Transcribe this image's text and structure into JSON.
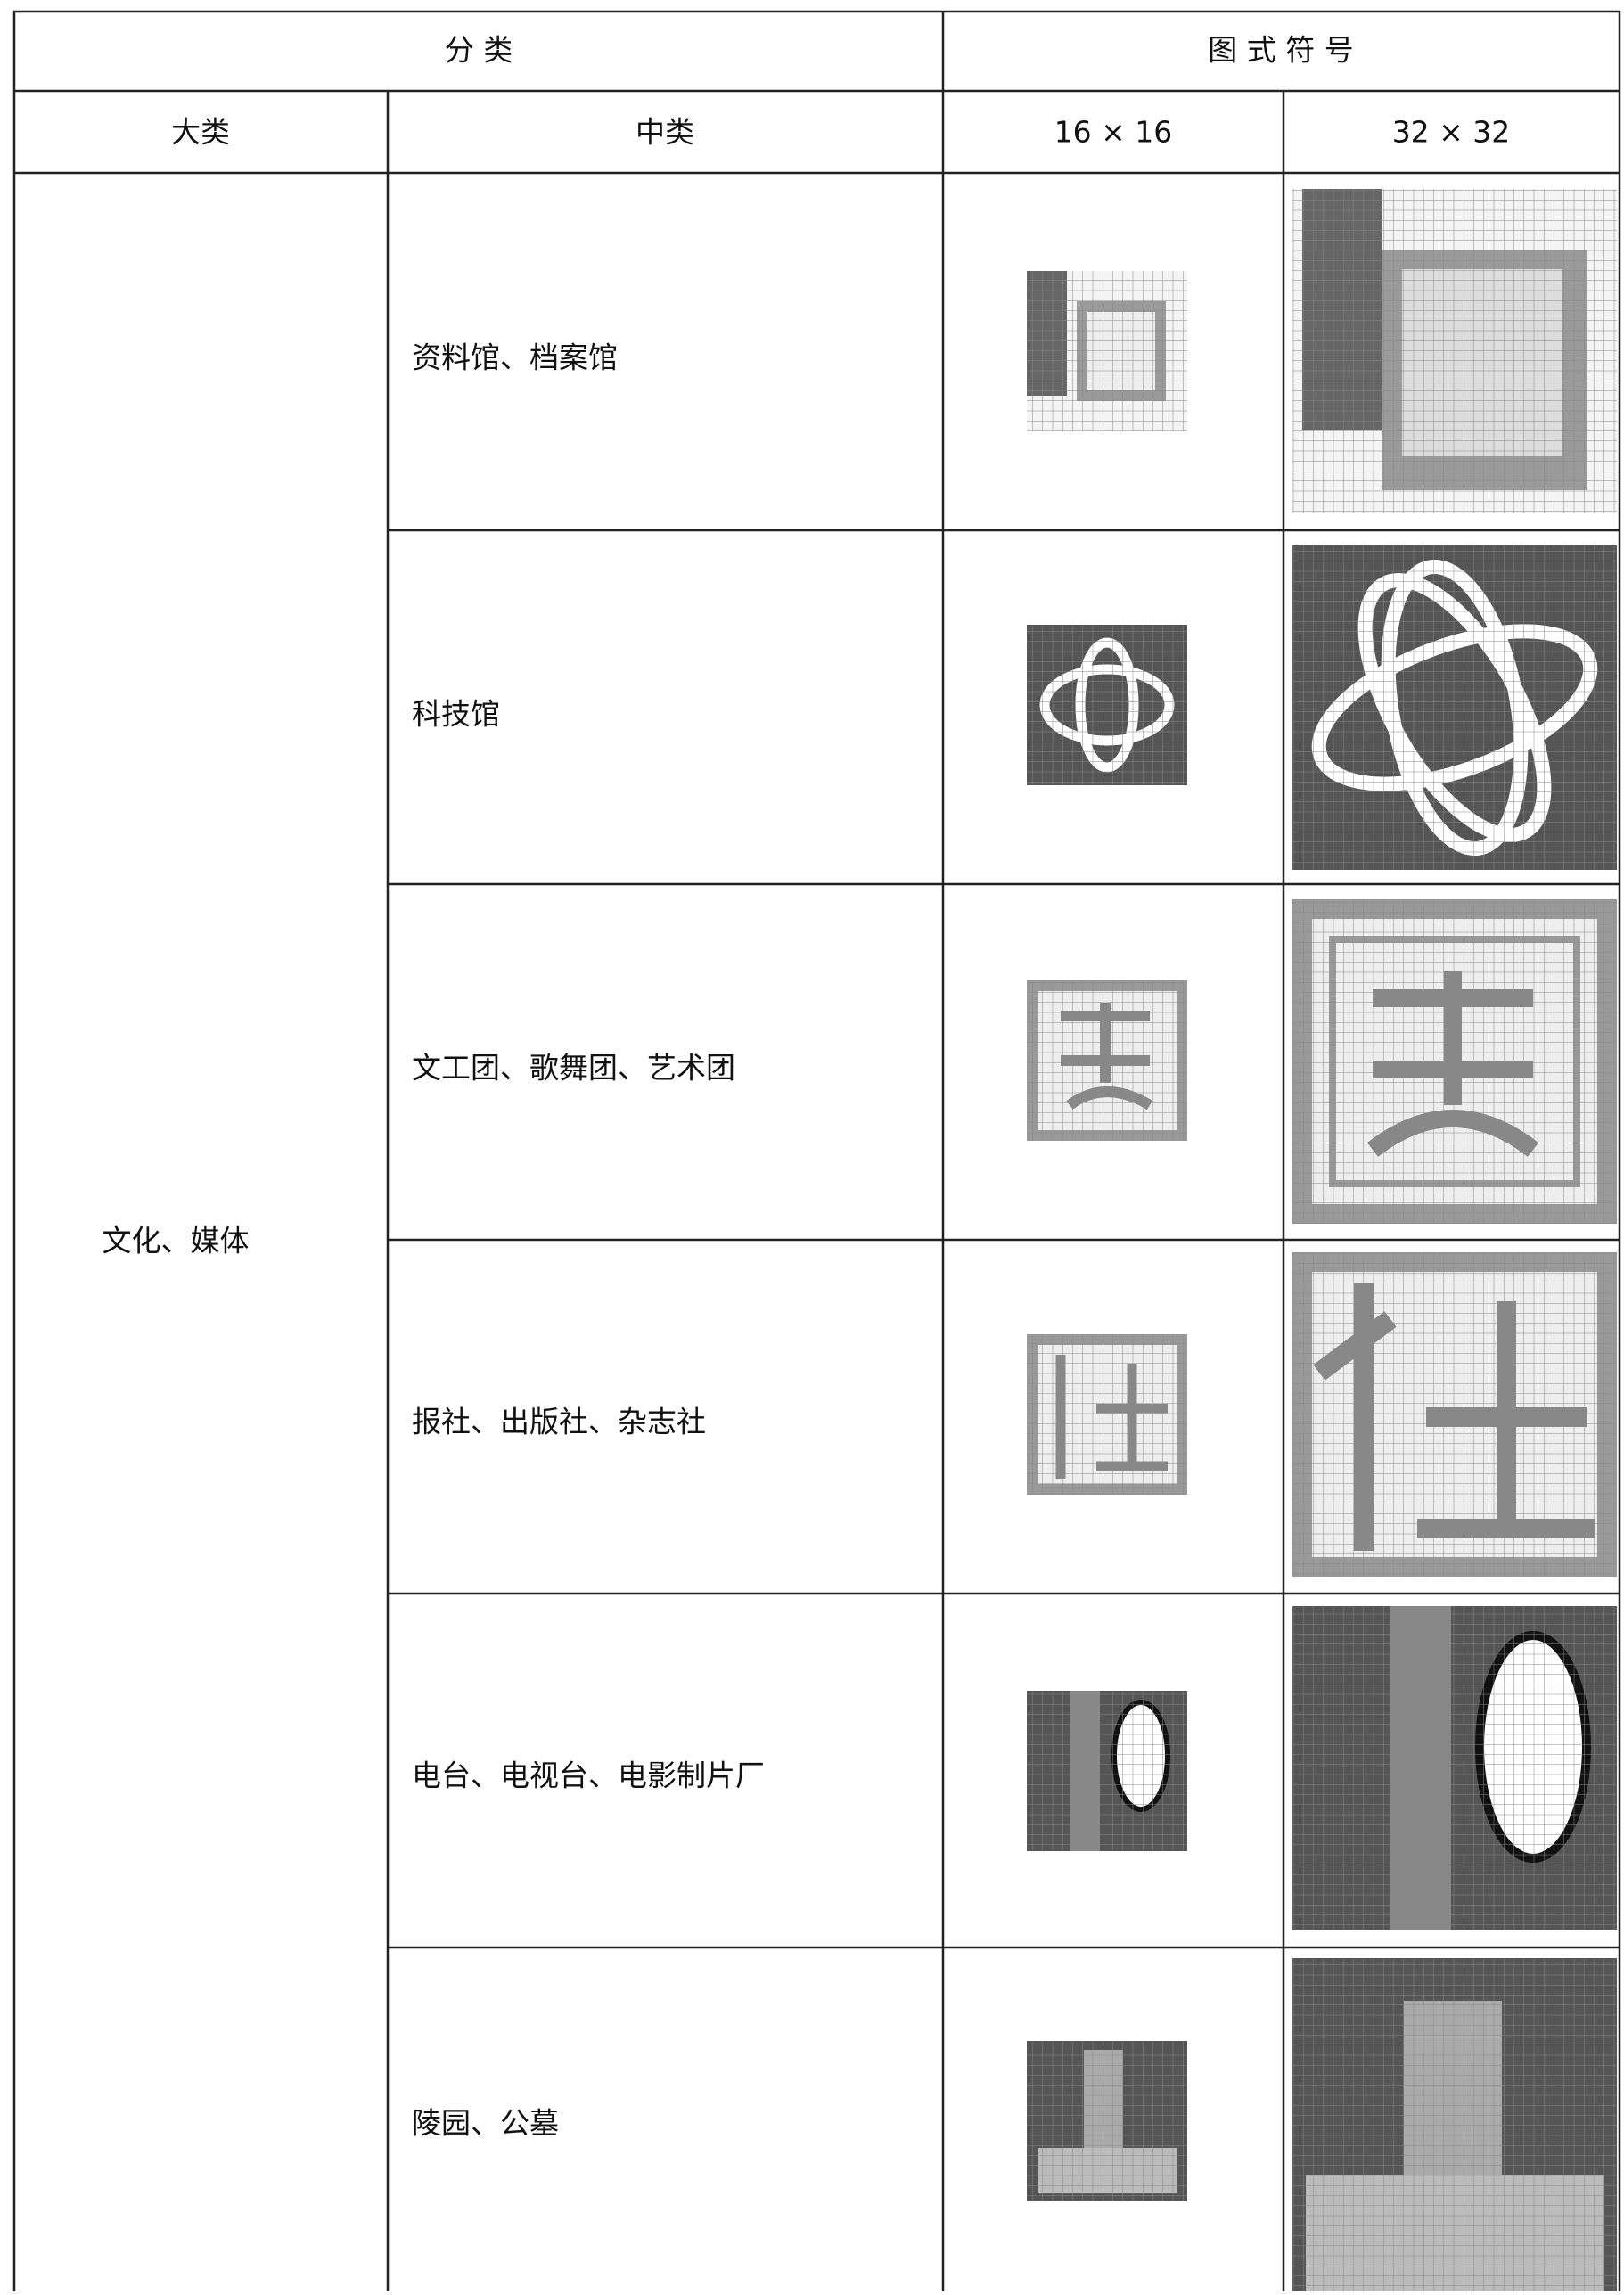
{
  "table": {
    "header": {
      "classification": "分 类",
      "symbol": "图 式 符 号"
    },
    "subheader": [
      "大类",
      "中类",
      "16 × 16",
      "32 × 32"
    ],
    "major_category": "文化、媒体",
    "rows": [
      "资料馆、档案馆",
      "科技馆",
      "文工团、歌舞团、艺术团",
      "报社、出版社、杂志社",
      "电台、电视台、电影制片厂",
      "陵园、公墓"
    ]
  }
}
